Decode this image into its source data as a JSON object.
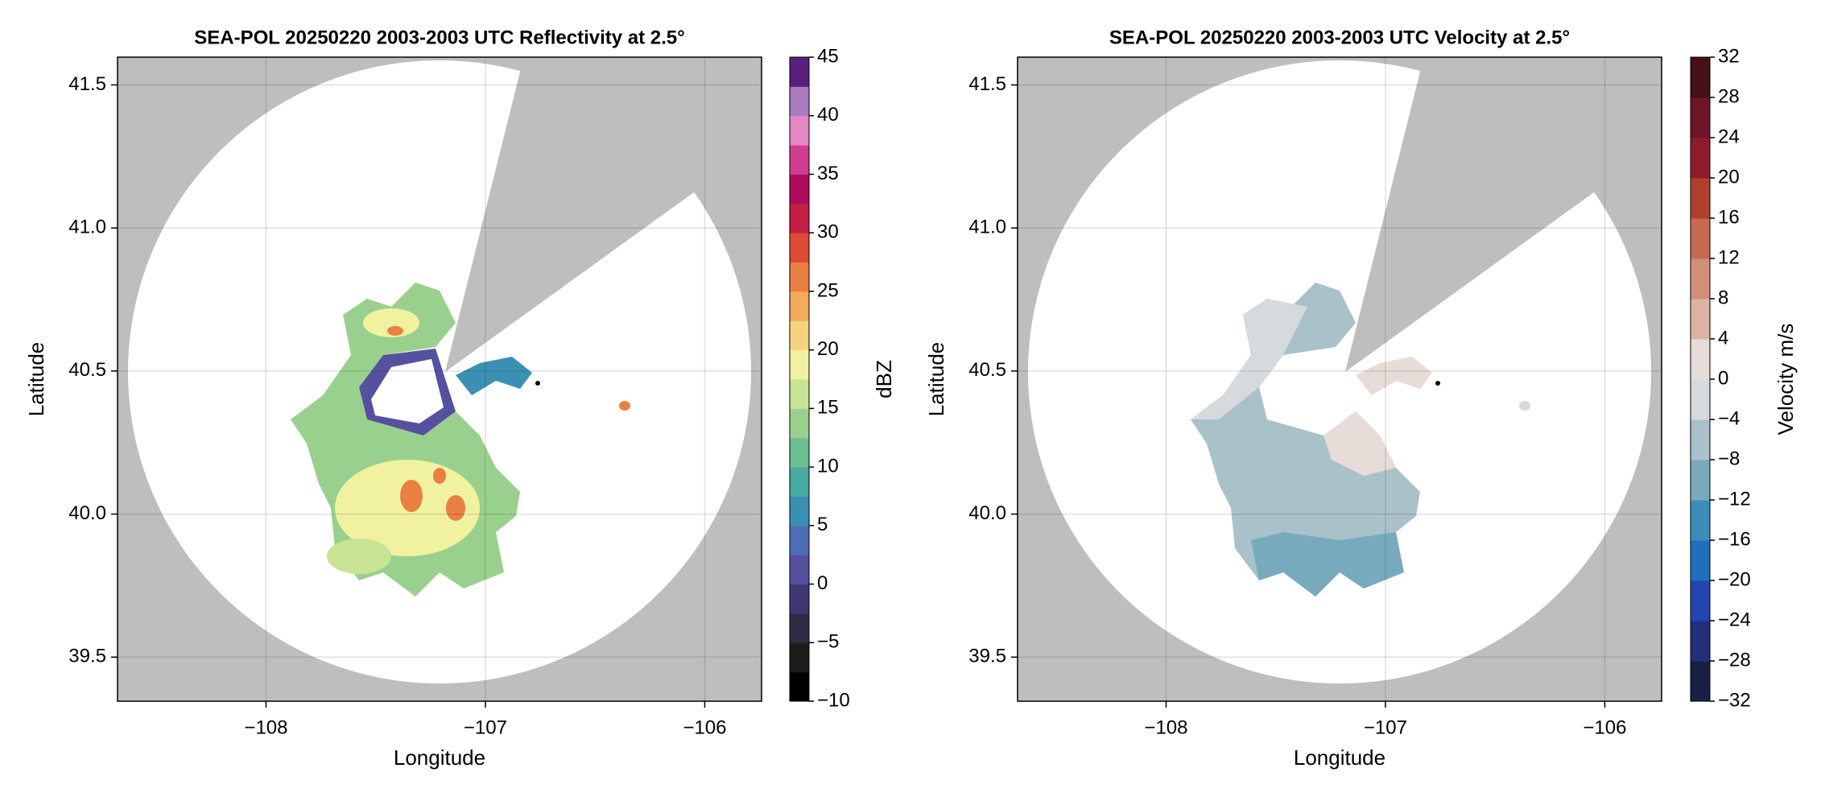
{
  "chart_data": [
    {
      "type": "radar-map",
      "title": "SEA-POL 20250220 2003-2003 UTC Reflectivity at 2.5°",
      "xlabel": "Longitude",
      "ylabel": "Latitude",
      "xlim": [
        -108.677,
        -105.741
      ],
      "ylim": [
        39.346,
        41.597
      ],
      "xticks": [
        {
          "value": -108,
          "label": "−108"
        },
        {
          "value": -107,
          "label": "−107"
        },
        {
          "value": -106,
          "label": "−106"
        }
      ],
      "yticks": [
        39.5,
        {
          "value": 40,
          "label": "40.0"
        },
        40.5,
        {
          "value": 41,
          "label": "41.0"
        },
        41.5
      ],
      "grid": true,
      "colorbar": {
        "label": "dBZ",
        "lim": [
          -10,
          45
        ],
        "ticks": [
          {
            "value": -10,
            "label": "−10"
          },
          {
            "value": -5,
            "label": "−5"
          },
          0,
          5,
          10,
          15,
          20,
          25,
          30,
          35,
          40,
          45
        ],
        "colors": [
          "#000000",
          "#1c1c1c",
          "#2f2c44",
          "#3e3872",
          "#5650a0",
          "#4e6db6",
          "#3b8fb3",
          "#46aaa0",
          "#6cbf93",
          "#9ad08d",
          "#c8e394",
          "#f1f2a0",
          "#f6d47e",
          "#f2ab58",
          "#ea7f42",
          "#dc4b36",
          "#c41e45",
          "#ad0b5c",
          "#d03d8e",
          "#e487c2",
          "#a97cc2",
          "#5a1e7e"
        ]
      }
    },
    {
      "type": "radar-map",
      "title": "SEA-POL 20250220 2003-2003 UTC Velocity at 2.5°",
      "xlabel": "Longitude",
      "ylabel": "Latitude",
      "xlim": [
        -108.677,
        -105.741
      ],
      "ylim": [
        39.346,
        41.597
      ],
      "xticks": [
        {
          "value": -108,
          "label": "−108"
        },
        {
          "value": -107,
          "label": "−107"
        },
        {
          "value": -106,
          "label": "−106"
        }
      ],
      "yticks": [
        39.5,
        {
          "value": 40,
          "label": "40.0"
        },
        40.5,
        {
          "value": 41,
          "label": "41.0"
        },
        41.5
      ],
      "grid": true,
      "colorbar": {
        "label": "Velocity m/s",
        "lim": [
          -32,
          32
        ],
        "ticks": [
          {
            "value": -32,
            "label": "−32"
          },
          {
            "value": -28,
            "label": "−28"
          },
          {
            "value": -24,
            "label": "−24"
          },
          {
            "value": -20,
            "label": "−20"
          },
          {
            "value": -16,
            "label": "−16"
          },
          {
            "value": -12,
            "label": "−12"
          },
          {
            "value": -8,
            "label": "−8"
          },
          {
            "value": -4,
            "label": "−4"
          },
          0,
          4,
          8,
          12,
          16,
          20,
          24,
          28,
          32
        ],
        "colors": [
          "#1a1f45",
          "#232f7a",
          "#2445b0",
          "#1f6fbf",
          "#3d8db9",
          "#78aabd",
          "#a9c1c9",
          "#d6dadd",
          "#e8dcd8",
          "#ddb4a3",
          "#d18f78",
          "#c56a4e",
          "#b0402c",
          "#8f1a2a",
          "#6e1428",
          "#451018"
        ]
      }
    }
  ]
}
